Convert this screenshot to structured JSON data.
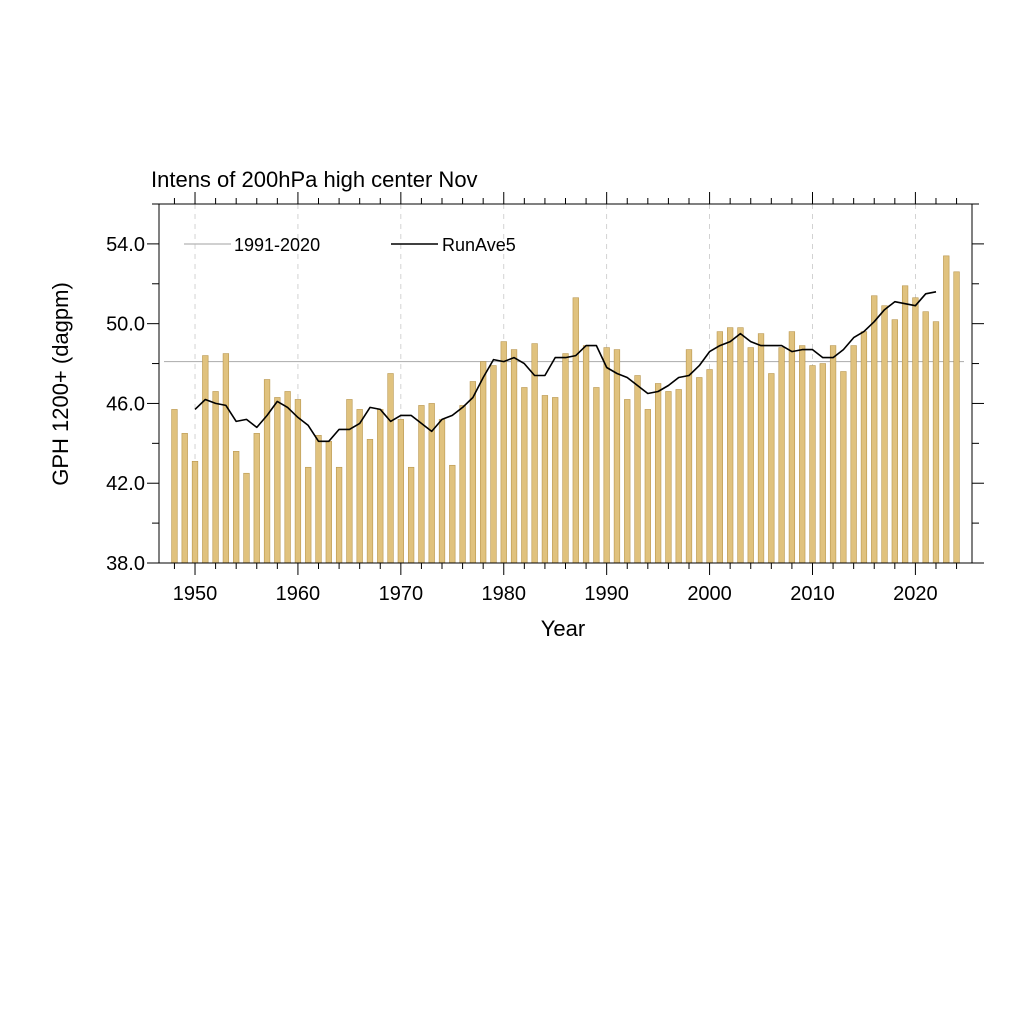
{
  "chart_data": {
    "type": "bar",
    "title": "Intens of 200hPa high center Nov",
    "xlabel": "Year",
    "ylabel": "GPH 1200+ (dagpm)",
    "xlim": [
      1946.5,
      2025.5
    ],
    "ylim": [
      38.0,
      56.0
    ],
    "yticks": [
      "38.0",
      "42.0",
      "46.0",
      "50.0",
      "54.0"
    ],
    "xticks": [
      "1950",
      "1960",
      "1970",
      "1980",
      "1990",
      "2000",
      "2010",
      "2020"
    ],
    "legend": {
      "placement": "top-left",
      "entries": [
        "1991-2020",
        "RunAve5"
      ]
    },
    "colors": {
      "bar_fill": "#e0c27e",
      "bar_stroke": "#b8964e",
      "climatology_line": "#b4b4b4",
      "running_mean_line": "#000000",
      "grid": "#c8c8c8"
    },
    "grid": "vertical dashed at major x ticks",
    "climatology_value": 48.1,
    "years": [
      1948,
      1949,
      1950,
      1951,
      1952,
      1953,
      1954,
      1955,
      1956,
      1957,
      1958,
      1959,
      1960,
      1961,
      1962,
      1963,
      1964,
      1965,
      1966,
      1967,
      1968,
      1969,
      1970,
      1971,
      1972,
      1973,
      1974,
      1975,
      1976,
      1977,
      1978,
      1979,
      1980,
      1981,
      1982,
      1983,
      1984,
      1985,
      1986,
      1987,
      1988,
      1989,
      1990,
      1991,
      1992,
      1993,
      1994,
      1995,
      1996,
      1997,
      1998,
      1999,
      2000,
      2001,
      2002,
      2003,
      2004,
      2005,
      2006,
      2007,
      2008,
      2009,
      2010,
      2011,
      2012,
      2013,
      2014,
      2015,
      2016,
      2017,
      2018,
      2019,
      2020,
      2021,
      2022,
      2023,
      2024
    ],
    "series": [
      {
        "name": "",
        "type": "bar",
        "values": [
          45.7,
          44.5,
          43.1,
          48.4,
          46.6,
          48.5,
          43.6,
          42.5,
          44.5,
          47.2,
          46.3,
          46.6,
          46.2,
          42.8,
          44.4,
          44.1,
          42.8,
          46.2,
          45.7,
          44.2,
          45.7,
          47.5,
          45.2,
          42.8,
          45.9,
          46.0,
          45.2,
          42.9,
          45.9,
          47.1,
          48.1,
          47.9,
          49.1,
          48.7,
          46.8,
          49.0,
          46.4,
          46.3,
          48.5,
          51.3,
          48.9,
          46.8,
          48.8,
          48.7,
          46.2,
          47.4,
          45.7,
          47.0,
          46.6,
          46.7,
          48.7,
          47.3,
          47.7,
          49.6,
          49.8,
          49.8,
          48.8,
          49.5,
          47.5,
          48.8,
          49.6,
          48.9,
          47.9,
          48.0,
          48.9,
          47.6,
          48.9,
          49.6,
          51.4,
          50.9,
          50.2,
          51.9,
          51.3,
          50.6,
          50.1,
          53.4,
          52.6
        ]
      },
      {
        "name": "RunAve5",
        "type": "line",
        "values": [
          null,
          null,
          45.7,
          46.2,
          46.0,
          45.9,
          45.1,
          45.2,
          44.8,
          45.4,
          46.1,
          45.8,
          45.3,
          44.9,
          44.1,
          44.1,
          44.7,
          44.7,
          45.0,
          45.8,
          45.7,
          45.1,
          45.4,
          45.4,
          45.0,
          44.6,
          45.2,
          45.4,
          45.8,
          46.3,
          47.3,
          48.2,
          48.1,
          48.3,
          48.0,
          47.4,
          47.4,
          48.3,
          48.3,
          48.4,
          48.9,
          48.9,
          47.8,
          47.5,
          47.3,
          46.9,
          46.5,
          46.6,
          46.9,
          47.3,
          47.4,
          47.9,
          48.6,
          48.9,
          49.1,
          49.5,
          49.1,
          48.9,
          48.9,
          48.9,
          48.6,
          48.7,
          48.7,
          48.3,
          48.3,
          48.7,
          49.3,
          49.6,
          50.1,
          50.7,
          51.1,
          51.0,
          50.9,
          51.5,
          51.6,
          null,
          null
        ]
      }
    ]
  }
}
